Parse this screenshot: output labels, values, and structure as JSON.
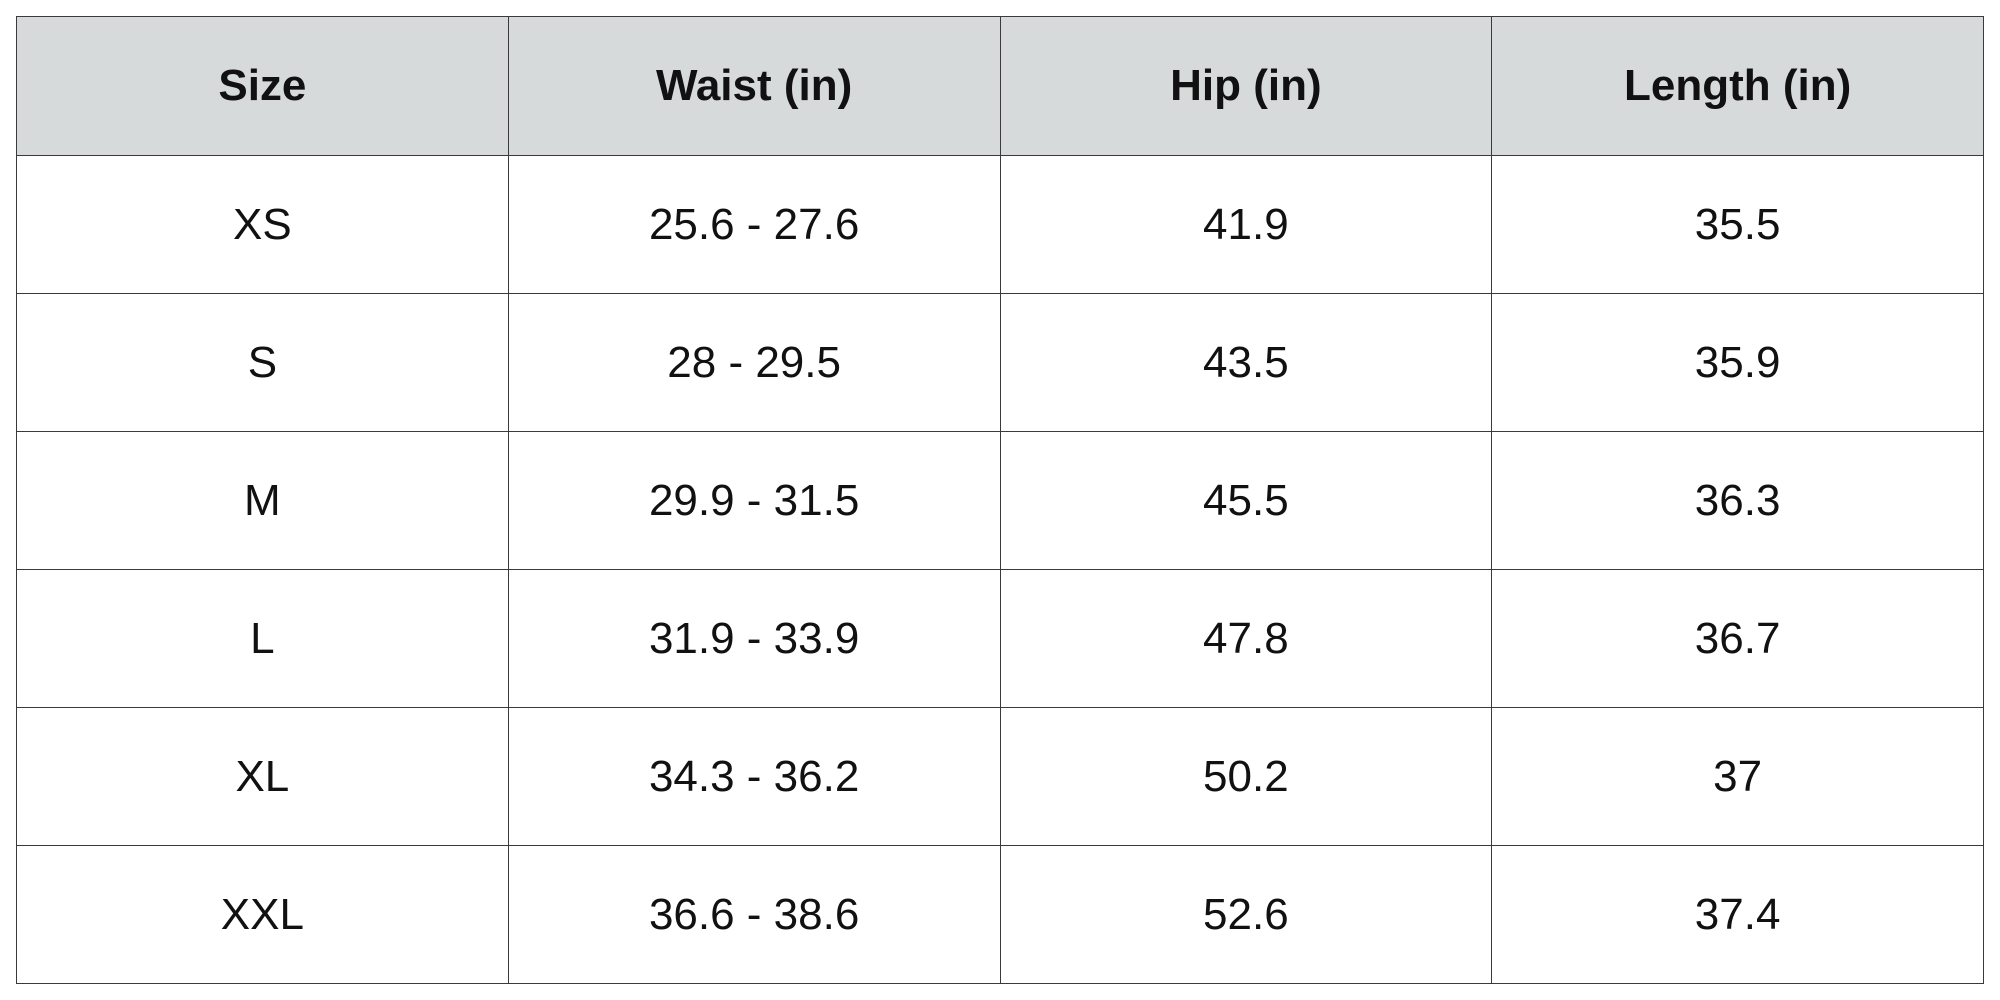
{
  "table": {
    "headers": [
      "Size",
      "Waist (in)",
      "Hip (in)",
      "Length (in)"
    ],
    "rows": [
      [
        "XS",
        "25.6 - 27.6",
        "41.9",
        "35.5"
      ],
      [
        "S",
        "28 - 29.5",
        "43.5",
        "35.9"
      ],
      [
        "M",
        "29.9 - 31.5",
        "45.5",
        "36.3"
      ],
      [
        "L",
        "31.9 - 33.9",
        "47.8",
        "36.7"
      ],
      [
        "XL",
        "34.3 - 36.2",
        "50.2",
        "37"
      ],
      [
        "XXL",
        "36.6 - 38.6",
        "52.6",
        "37.4"
      ]
    ],
    "colors": {
      "header_background": "#d7dadb",
      "border": "#3a3a3a",
      "text": "#111111"
    }
  }
}
